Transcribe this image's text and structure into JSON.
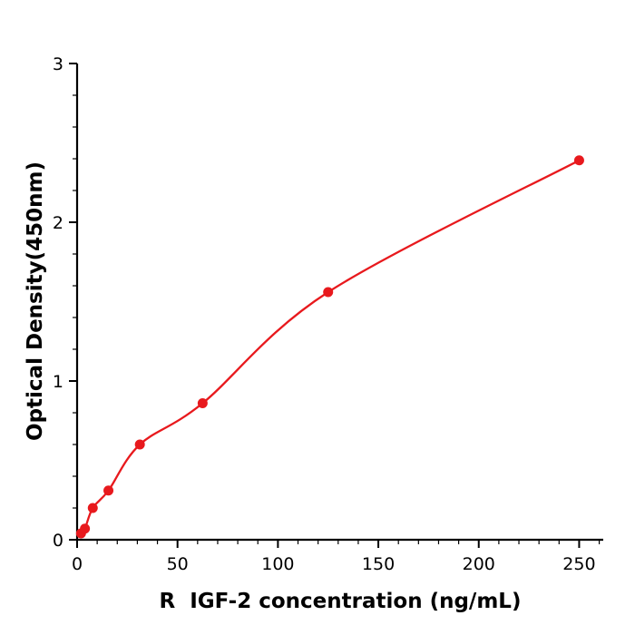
{
  "chart_data": {
    "type": "scatter",
    "title": "",
    "xlabel": "R  IGF-2 concentration (ng/mL)",
    "ylabel": "Optical Density(450nm)",
    "x": [
      1.95,
      3.9,
      7.8,
      15.6,
      31.25,
      62.5,
      125,
      250
    ],
    "y": [
      0.04,
      0.07,
      0.2,
      0.31,
      0.6,
      0.86,
      1.56,
      2.39
    ],
    "fit_line": true,
    "xlim": [
      0,
      262
    ],
    "ylim": [
      0,
      3
    ],
    "xticks": [
      0,
      50,
      100,
      150,
      200,
      250
    ],
    "yticks": [
      0,
      1,
      2,
      3
    ],
    "x_minor_step": 10,
    "y_minor_step": 0.2,
    "point_color": "#e8191d",
    "line_color": "#e8191d",
    "axis_color": "#000000",
    "background": "#ffffff",
    "grid": false,
    "legend": "none"
  }
}
